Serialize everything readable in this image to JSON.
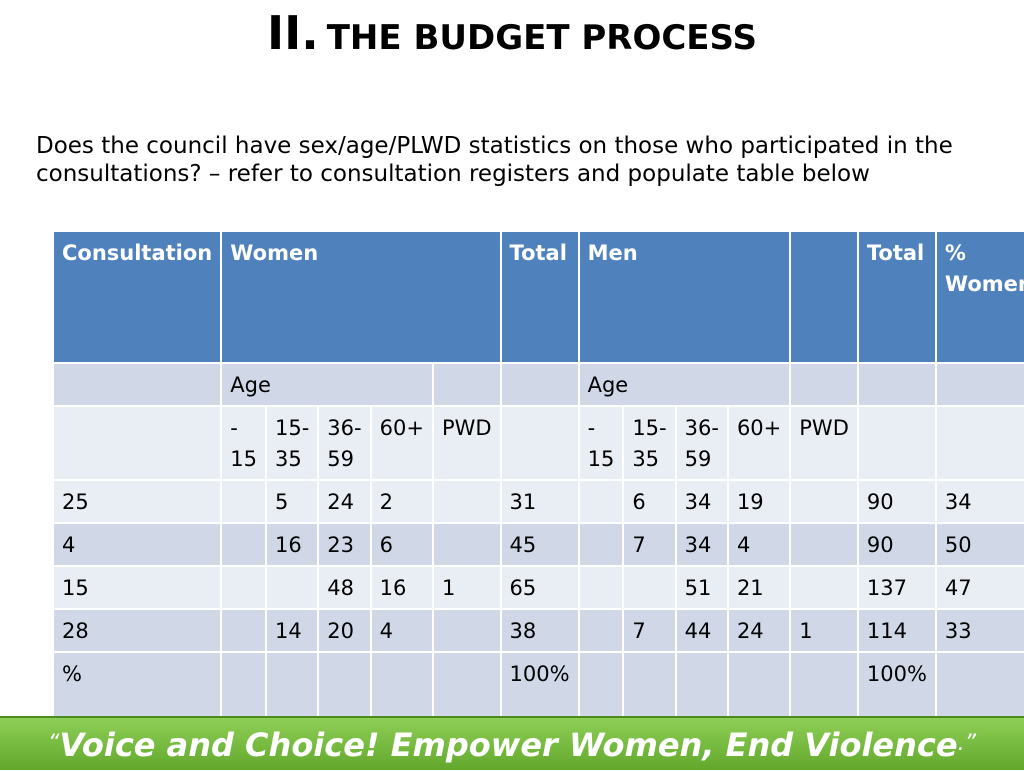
{
  "slide": {
    "title_num": "II.",
    "title_text": "THE BUDGET PROCESS",
    "question": "Does the council have sex/age/PLWD statistics on those who participated in the consultations? – refer to consultation registers and populate table below",
    "footer": {
      "open_quote": "“",
      "text": "Voice and Choice! Empower Women, End Violence",
      "close_quote": ".”"
    }
  },
  "table": {
    "header": [
      "Consultation",
      "Women",
      "Total",
      "Men",
      "",
      "Total",
      "% Women"
    ],
    "age_row": [
      "",
      "Age",
      "",
      "",
      "Age",
      "",
      "",
      ""
    ],
    "age_groups": [
      "",
      "- 15",
      "15-35",
      "36-59",
      "60+",
      "PWD",
      "",
      "- 15",
      "15-35",
      "36-59",
      "60+",
      "PWD",
      "",
      ""
    ],
    "rows": [
      [
        "25",
        "",
        "5",
        "24",
        "2",
        "",
        "31",
        "",
        "6",
        "34",
        "19",
        "",
        "90",
        "34"
      ],
      [
        "4",
        "",
        "16",
        "23",
        "6",
        "",
        "45",
        "",
        "7",
        "34",
        "4",
        "",
        "90",
        "50"
      ],
      [
        "15",
        "",
        "",
        "48",
        "16",
        "1",
        "65",
        "",
        "",
        "51",
        "21",
        "",
        "137",
        "47"
      ],
      [
        "28",
        "",
        "14",
        "20",
        "4",
        "",
        "38",
        "",
        "7",
        "44",
        "24",
        "1",
        "114",
        "33"
      ],
      [
        "%",
        "",
        "",
        "",
        "",
        "",
        "100%",
        "",
        "",
        "",
        "",
        "",
        "100%",
        ""
      ]
    ]
  }
}
